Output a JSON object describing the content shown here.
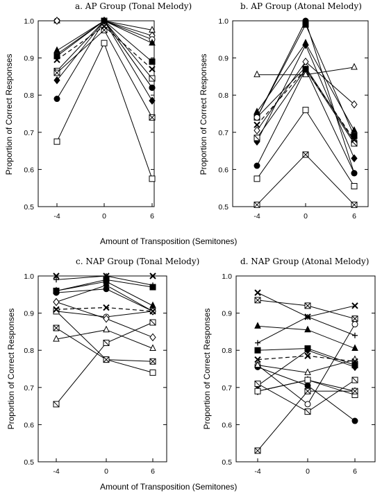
{
  "figure": {
    "x_axis_label_top": "Amount of Transposition (Semitones)",
    "x_axis_label_bottom": "Amount of Transposition (Semitones)",
    "y_axis_label": "Proportion of Correct Responses"
  },
  "chart_data": [
    {
      "type": "line",
      "title": "a. AP Group (Tonal Melody)",
      "xlabel": "Amount of Transposition (Semitones)",
      "ylabel": "Proportion of Correct Responses",
      "x_ticks": [
        -4,
        0,
        6
      ],
      "y_ticks": [
        0.5,
        0.6,
        0.7,
        0.8,
        0.9,
        1.0
      ],
      "ylim": [
        0.5,
        1.0
      ],
      "series": [
        {
          "marker": "triangle-open",
          "values": [
            1.0,
            1.0,
            0.975
          ]
        },
        {
          "marker": "circle-filled",
          "values": [
            1.0,
            1.0,
            0.82
          ]
        },
        {
          "marker": "diamond-open",
          "values": [
            1.0,
            1.0,
            0.96
          ]
        },
        {
          "marker": "circle-open",
          "values": [
            0.91,
            1.0,
            0.95
          ]
        },
        {
          "marker": "triangle-filled",
          "values": [
            0.92,
            1.0,
            0.94
          ]
        },
        {
          "marker": "square-filled",
          "values": [
            0.905,
            1.0,
            0.89
          ]
        },
        {
          "marker": "boxx",
          "values": [
            0.865,
            1.0,
            0.845
          ]
        },
        {
          "marker": "diamond-filled",
          "values": [
            0.84,
            1.0,
            0.785
          ]
        },
        {
          "marker": "square-x",
          "values": [
            0.86,
            0.975,
            0.74
          ]
        },
        {
          "marker": "circle-filled",
          "values": [
            0.79,
            1.0,
            0.82
          ]
        },
        {
          "marker": "square-open",
          "values": [
            0.675,
            0.94,
            0.575
          ]
        },
        {
          "marker": "x",
          "dashed": true,
          "values": [
            0.895,
            0.985,
            0.87
          ]
        }
      ]
    },
    {
      "type": "line",
      "title": "b. AP Group (Atonal Melody)",
      "xlabel": "Amount of Transposition (Semitones)",
      "ylabel": "Proportion of Correct Responses",
      "x_ticks": [
        -4,
        0,
        6
      ],
      "y_ticks": [
        0.5,
        0.6,
        0.7,
        0.8,
        0.9,
        1.0
      ],
      "ylim": [
        0.5,
        1.0
      ],
      "series": [
        {
          "marker": "triangle-open",
          "values": [
            0.855,
            0.855,
            0.875
          ]
        },
        {
          "marker": "circle-filled",
          "values": [
            0.74,
            1.0,
            0.59
          ]
        },
        {
          "marker": "square-filled",
          "values": [
            0.74,
            0.99,
            0.69
          ]
        },
        {
          "marker": "triangle-filled",
          "values": [
            0.755,
            0.94,
            0.705
          ]
        },
        {
          "marker": "diamond-filled",
          "values": [
            0.675,
            0.935,
            0.63
          ]
        },
        {
          "marker": "diamond-open",
          "values": [
            0.705,
            0.89,
            0.775
          ]
        },
        {
          "marker": "circle-open",
          "values": [
            0.74,
            0.875,
            0.675
          ]
        },
        {
          "marker": "boxx",
          "values": [
            0.685,
            0.87,
            0.67
          ]
        },
        {
          "marker": "circle-filled",
          "values": [
            0.61,
            0.87,
            0.59
          ]
        },
        {
          "marker": "square-open",
          "values": [
            0.575,
            0.76,
            0.555
          ]
        },
        {
          "marker": "square-x",
          "values": [
            0.505,
            0.64,
            0.505
          ]
        },
        {
          "marker": "x",
          "dashed": true,
          "values": [
            0.72,
            0.87,
            0.68
          ]
        }
      ]
    },
    {
      "type": "line",
      "title": "c. NAP Group (Tonal Melody)",
      "xlabel": "Amount of Transposition (Semitones)",
      "ylabel": "Proportion of Correct Responses",
      "x_ticks": [
        -4,
        0,
        6
      ],
      "y_ticks": [
        0.5,
        0.6,
        0.7,
        0.8,
        0.9,
        1.0
      ],
      "ylim": [
        0.5,
        1.0
      ],
      "series": [
        {
          "marker": "x",
          "values": [
            1.0,
            1.0,
            1.0
          ]
        },
        {
          "marker": "plus",
          "values": [
            0.99,
            1.0,
            0.975
          ]
        },
        {
          "marker": "square-filled",
          "values": [
            0.96,
            0.99,
            0.97
          ]
        },
        {
          "marker": "triangle-filled",
          "values": [
            0.96,
            0.985,
            0.92
          ]
        },
        {
          "marker": "circle-filled",
          "values": [
            0.955,
            0.965,
            0.905
          ]
        },
        {
          "marker": "diamond-filled",
          "values": [
            0.93,
            0.975,
            0.905
          ]
        },
        {
          "marker": "circle-open",
          "values": [
            0.905,
            0.89,
            0.905
          ]
        },
        {
          "marker": "square-open",
          "values": [
            0.905,
            0.775,
            0.74
          ]
        },
        {
          "marker": "square-x",
          "values": [
            0.86,
            0.775,
            0.77
          ]
        },
        {
          "marker": "triangle-open",
          "values": [
            0.83,
            0.855,
            0.805
          ]
        },
        {
          "marker": "diamond-open",
          "values": [
            0.93,
            0.885,
            0.835
          ]
        },
        {
          "marker": "boxx",
          "values": [
            0.655,
            0.82,
            0.875
          ]
        },
        {
          "marker": "x",
          "dashed": true,
          "values": [
            0.91,
            0.915,
            0.905
          ]
        }
      ]
    },
    {
      "type": "line",
      "title": "d. NAP Group (Atonal Melody)",
      "xlabel": "Amount of Transposition (Semitones)",
      "ylabel": "Proportion of Correct Responses",
      "x_ticks": [
        -4,
        0,
        6
      ],
      "y_ticks": [
        0.5,
        0.6,
        0.7,
        0.8,
        0.9,
        1.0
      ],
      "ylim": [
        0.5,
        1.0
      ],
      "series": [
        {
          "marker": "x",
          "values": [
            0.955,
            0.89,
            0.92
          ]
        },
        {
          "marker": "square-x",
          "values": [
            0.935,
            0.92,
            0.885
          ]
        },
        {
          "marker": "triangle-filled",
          "values": [
            0.865,
            0.855,
            0.805
          ]
        },
        {
          "marker": "plus",
          "values": [
            0.82,
            0.89,
            0.84
          ]
        },
        {
          "marker": "square-filled",
          "values": [
            0.8,
            0.805,
            0.76
          ]
        },
        {
          "marker": "diamond-filled",
          "values": [
            0.705,
            0.8,
            0.755
          ]
        },
        {
          "marker": "circle-open",
          "values": [
            0.76,
            0.655,
            0.87
          ]
        },
        {
          "marker": "diamond-open",
          "values": [
            0.69,
            0.72,
            0.69
          ]
        },
        {
          "marker": "square-open",
          "values": [
            0.69,
            0.72,
            0.68
          ]
        },
        {
          "marker": "boxx",
          "values": [
            0.71,
            0.635,
            0.72
          ]
        },
        {
          "marker": "circle-filled",
          "values": [
            0.755,
            0.705,
            0.61
          ]
        },
        {
          "marker": "triangle-open",
          "values": [
            0.76,
            0.74,
            0.775
          ]
        },
        {
          "marker": "square-x",
          "values": [
            0.53,
            0.69,
            0.69
          ]
        },
        {
          "marker": "x",
          "dashed": true,
          "values": [
            0.775,
            0.785,
            0.77
          ]
        }
      ]
    }
  ]
}
